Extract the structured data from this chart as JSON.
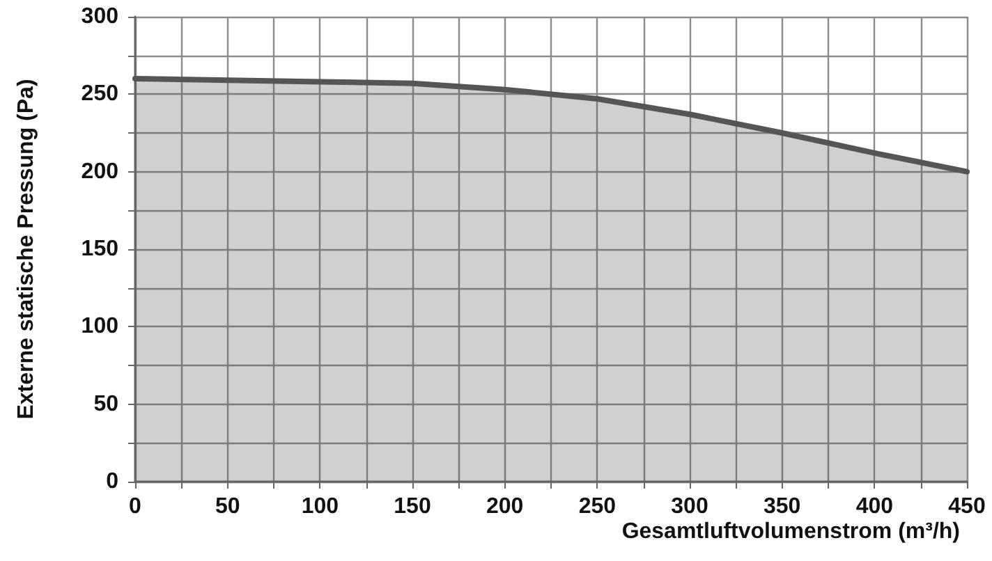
{
  "chart_data": {
    "type": "area",
    "xlabel": "Gesamtluftvolumenstrom (m³/h)",
    "ylabel": "Externe statische Pressung (Pa)",
    "x": [
      0,
      50,
      100,
      150,
      200,
      250,
      300,
      350,
      400,
      450
    ],
    "series": [
      {
        "color": "#555555",
        "values": [
          260,
          259,
          258,
          257,
          253,
          247,
          237,
          225,
          212,
          200
        ]
      }
    ],
    "xlim": [
      0,
      450
    ],
    "xticks": [
      0,
      {
        "value": 25,
        "label": null
      },
      50,
      {
        "value": 75,
        "label": null
      },
      100,
      {
        "value": 125,
        "label": null
      },
      150,
      {
        "value": 175,
        "label": null
      },
      200,
      {
        "value": 225,
        "label": null
      },
      250,
      {
        "value": 275,
        "label": null
      },
      300,
      {
        "value": 325,
        "label": null
      },
      350,
      {
        "value": 375,
        "label": null
      },
      400,
      {
        "value": 425,
        "label": null
      },
      450
    ],
    "ylim": [
      0,
      300
    ],
    "yticks": [
      0,
      {
        "value": 25,
        "label": null
      },
      50,
      {
        "value": 75,
        "label": null
      },
      100,
      {
        "value": 125,
        "label": null
      },
      150,
      {
        "value": 175,
        "label": null
      },
      200,
      {
        "value": 225,
        "label": null
      },
      250,
      {
        "value": 275,
        "label": null
      },
      300
    ],
    "grid": true,
    "marker": "none",
    "line_style": "solid"
  }
}
